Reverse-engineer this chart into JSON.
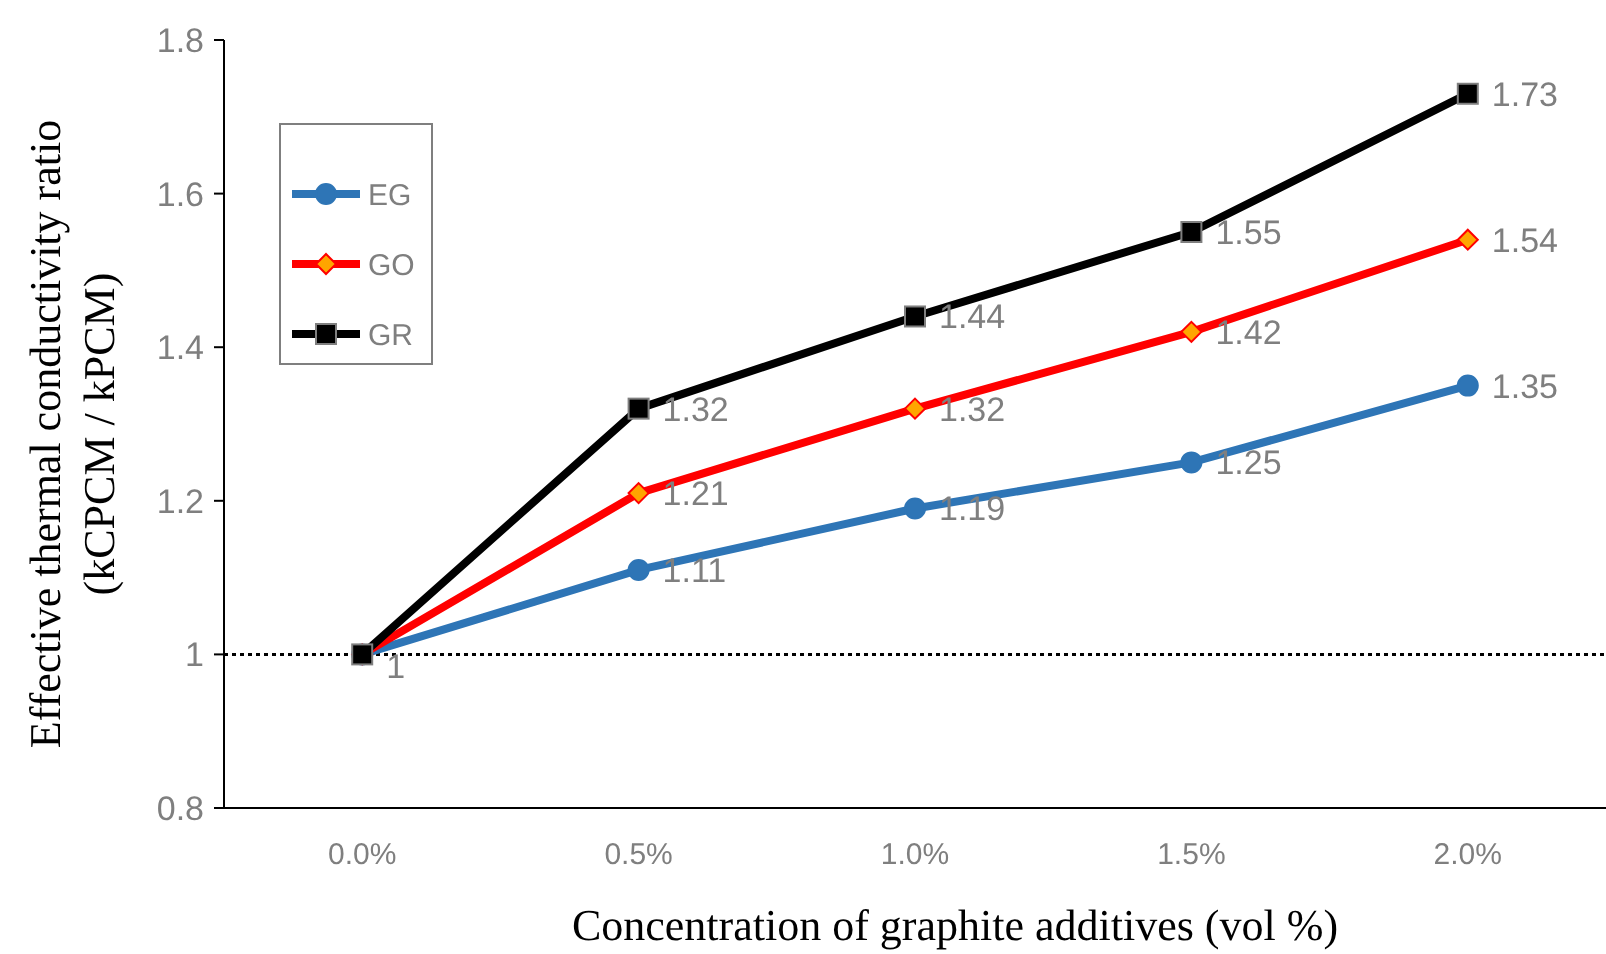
{
  "chart_data": {
    "type": "line",
    "xlabel": "Concentration of graphite additives (vol %)",
    "ylabel": "Effective thermal conductivity ratio\n(kCPCM / kPCM)",
    "categories": [
      "0.0%",
      "0.5%",
      "1.0%",
      "1.5%",
      "2.0%"
    ],
    "ylim": [
      0.8,
      1.8
    ],
    "yticks": [
      0.8,
      1,
      1.2,
      1.4,
      1.6,
      1.8
    ],
    "grid": false,
    "legend": "top left",
    "series": [
      {
        "name": "EG",
        "color": "#2e75b6",
        "marker": "circle",
        "values": [
          1,
          1.11,
          1.19,
          1.25,
          1.35
        ],
        "value_labels": [
          "1",
          "1.11",
          "1.19",
          "1.25",
          "1.35"
        ]
      },
      {
        "name": "GO",
        "color": "#ff0000",
        "marker": "diamond",
        "values": [
          1,
          1.21,
          1.32,
          1.42,
          1.54
        ],
        "value_labels": [
          null,
          "1.21",
          "1.32",
          "1.42",
          "1.54"
        ]
      },
      {
        "name": "GR",
        "color": "#000000",
        "marker": "square",
        "values": [
          1,
          1.32,
          1.44,
          1.55,
          1.73
        ],
        "value_labels": [
          null,
          "1.32",
          "1.44",
          "1.55",
          "1.73"
        ]
      }
    ],
    "ref_lines": [
      {
        "axis": "y",
        "value": 1,
        "color": "#000000",
        "line_style": "dotted"
      }
    ]
  }
}
